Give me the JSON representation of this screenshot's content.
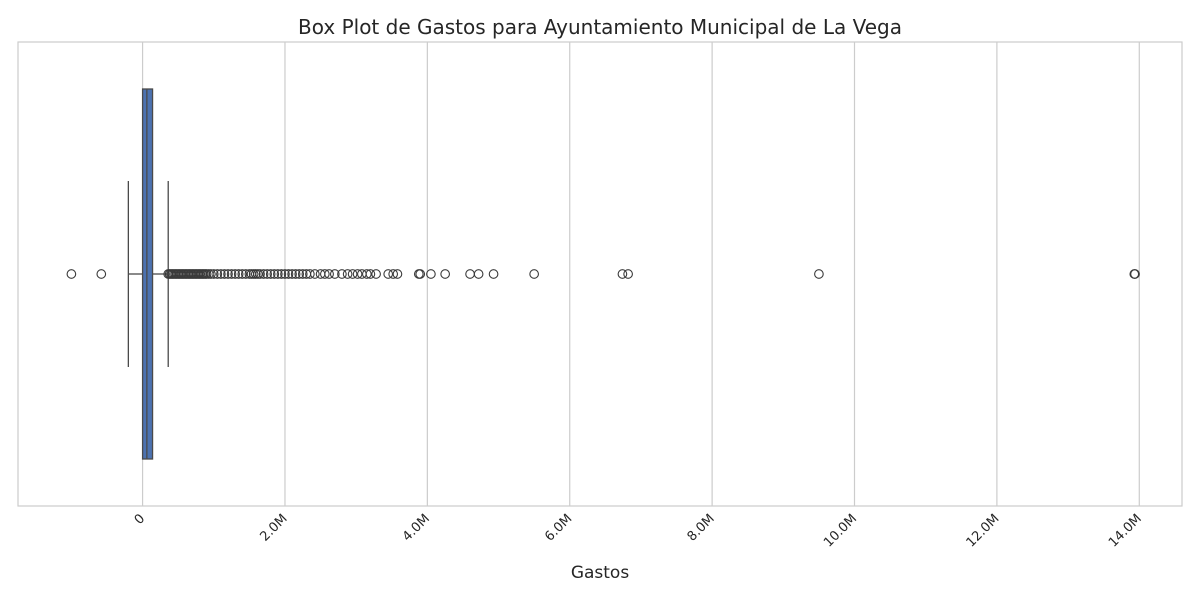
{
  "chart_data": {
    "type": "box",
    "orientation": "horizontal",
    "title": "Box Plot de Gastos para Ayuntamiento Municipal de La Vega",
    "xlabel": "Gastos",
    "ylabel": "",
    "xlim": [
      -1750000,
      14600000
    ],
    "xticks": [
      0,
      2000000,
      4000000,
      6000000,
      8000000,
      10000000,
      12000000,
      14000000
    ],
    "xtick_labels": [
      "0",
      "2.0M",
      "4.0M",
      "6.0M",
      "8.0M",
      "10.0M",
      "12.0M",
      "14.0M"
    ],
    "grid": true,
    "box": {
      "whisker_low": -200000,
      "q1": 0,
      "median": 60000,
      "q3": 140000,
      "whisker_high": 360000,
      "color": "#4c72b0"
    },
    "outliers": [
      -1000000,
      -580000,
      360000,
      380000,
      400000,
      420000,
      440000,
      460000,
      480000,
      500000,
      520000,
      540000,
      560000,
      580000,
      600000,
      620000,
      640000,
      660000,
      680000,
      700000,
      720000,
      740000,
      760000,
      780000,
      800000,
      820000,
      840000,
      860000,
      880000,
      900000,
      930000,
      960000,
      1000000,
      1050000,
      1100000,
      1150000,
      1200000,
      1250000,
      1300000,
      1350000,
      1400000,
      1450000,
      1500000,
      1530000,
      1560000,
      1590000,
      1620000,
      1650000,
      1700000,
      1750000,
      1800000,
      1850000,
      1900000,
      1950000,
      2000000,
      2050000,
      2100000,
      2150000,
      2200000,
      2250000,
      2300000,
      2350000,
      2420000,
      2500000,
      2560000,
      2620000,
      2700000,
      2800000,
      2880000,
      2950000,
      3020000,
      3080000,
      3150000,
      3200000,
      3280000,
      3450000,
      3520000,
      3580000,
      3880000,
      3900000,
      4050000,
      4250000,
      4600000,
      4720000,
      4930000,
      5500000,
      6740000,
      6820000,
      9500000,
      13930000,
      13940000
    ]
  }
}
